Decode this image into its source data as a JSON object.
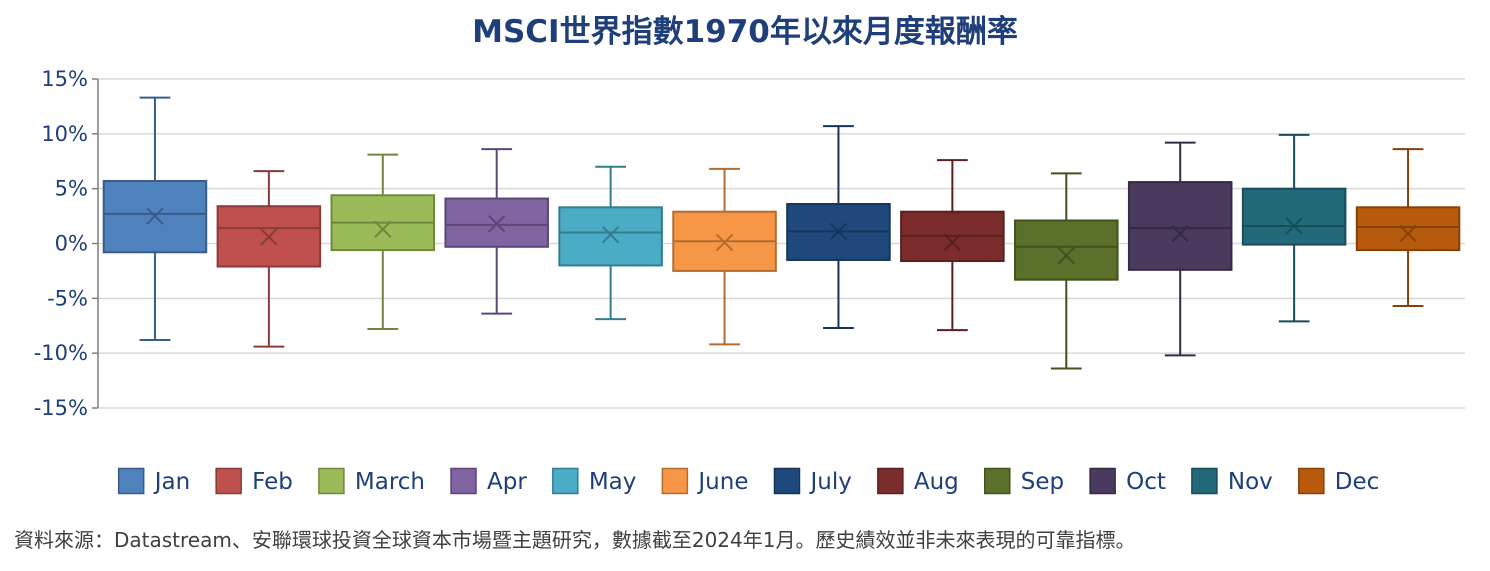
{
  "title": "MSCI世界指數1970年以來月度報酬率",
  "source": "資料來源：Datastream、安聯環球投資全球資本市場暨主題研究，數據截至2024年1月。歷史績效並非未來表現的可靠指標。",
  "chart_data": {
    "type": "box",
    "y_ticks": [
      "15%",
      "10%",
      "5%",
      "0%",
      "-5%",
      "-10%",
      "-15%"
    ],
    "ylim": [
      -15,
      15
    ],
    "grid": true,
    "legend_position": "bottom",
    "series": [
      {
        "name": "Jan",
        "color": "#4f81bd",
        "min": -8.8,
        "q1": -0.8,
        "median": 2.7,
        "mean": 2.5,
        "q3": 5.7,
        "max": 13.3
      },
      {
        "name": "Feb",
        "color": "#c0504d",
        "min": -9.4,
        "q1": -2.1,
        "median": 1.4,
        "mean": 0.6,
        "q3": 3.4,
        "max": 6.6
      },
      {
        "name": "March",
        "color": "#9bbb59",
        "min": -7.8,
        "q1": -0.6,
        "median": 1.9,
        "mean": 1.3,
        "q3": 4.4,
        "max": 8.1
      },
      {
        "name": "Apr",
        "color": "#8064a2",
        "min": -6.4,
        "q1": -0.3,
        "median": 1.7,
        "mean": 1.8,
        "q3": 4.1,
        "max": 8.6
      },
      {
        "name": "May",
        "color": "#4bacc6",
        "min": -6.9,
        "q1": -2.0,
        "median": 1.0,
        "mean": 0.8,
        "q3": 3.3,
        "max": 7.0
      },
      {
        "name": "June",
        "color": "#f79646",
        "min": -9.2,
        "q1": -2.5,
        "median": 0.2,
        "mean": 0.1,
        "q3": 2.9,
        "max": 6.8
      },
      {
        "name": "July",
        "color": "#1f497d",
        "min": -7.7,
        "q1": -1.5,
        "median": 1.1,
        "mean": 1.1,
        "q3": 3.6,
        "max": 10.7
      },
      {
        "name": "Aug",
        "color": "#7b2c2c",
        "min": -7.9,
        "q1": -1.6,
        "median": 0.7,
        "mean": 0.1,
        "q3": 2.9,
        "max": 7.6
      },
      {
        "name": "Sep",
        "color": "#5b702a",
        "min": -11.4,
        "q1": -3.3,
        "median": -0.3,
        "mean": -1.1,
        "q3": 2.1,
        "max": 6.4
      },
      {
        "name": "Oct",
        "color": "#4a3b5e",
        "min": -10.2,
        "q1": -2.4,
        "median": 1.4,
        "mean": 0.9,
        "q3": 5.6,
        "max": 9.2
      },
      {
        "name": "Nov",
        "color": "#226a7a",
        "min": -7.1,
        "q1": -0.1,
        "median": 1.6,
        "mean": 1.6,
        "q3": 5.0,
        "max": 9.9
      },
      {
        "name": "Dec",
        "color": "#b85a0e",
        "min": -5.7,
        "q1": -0.6,
        "median": 1.5,
        "mean": 0.9,
        "q3": 3.3,
        "max": 8.6
      }
    ]
  }
}
